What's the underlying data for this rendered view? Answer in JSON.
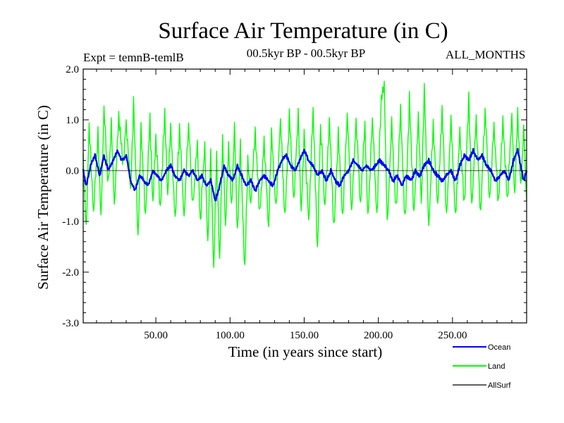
{
  "chart_data": {
    "type": "line",
    "title": "Surface Air Temperature (in C)",
    "subtitle_left": "Expt = temnB-temlB",
    "subtitle_center": "00.5kyr BP - 00.5kyr BP",
    "subtitle_right": "ALL_MONTHS",
    "xlabel": "Time (in years since start)",
    "ylabel": "Surface Air Temperature (in C)",
    "xlim": [
      1,
      300
    ],
    "ylim": [
      -3.0,
      2.0
    ],
    "x_ticks": [
      50,
      100,
      150,
      200,
      250
    ],
    "x_tick_labels": [
      "50.00",
      "100.00",
      "150.00",
      "200.00",
      "250.00"
    ],
    "y_ticks": [
      -3.0,
      -2.0,
      -1.0,
      0.0,
      1.0,
      2.0
    ],
    "y_tick_labels": [
      "-3.0",
      "-2.0",
      "-1.0",
      "0.0",
      "1.0",
      "2.0"
    ],
    "samples_per_year": 2,
    "series": [
      {
        "name": "Land",
        "color": "#00ff00",
        "keypoints": [
          [
            1,
            0.2
          ],
          [
            3,
            -1.2
          ],
          [
            5,
            0.9
          ],
          [
            8,
            -0.8
          ],
          [
            11,
            0.7
          ],
          [
            13,
            -0.9
          ],
          [
            15,
            1.2
          ],
          [
            18,
            -0.3
          ],
          [
            20,
            0.9
          ],
          [
            22,
            -0.7
          ],
          [
            25,
            1.1
          ],
          [
            28,
            0.1
          ],
          [
            30,
            1.0
          ],
          [
            33,
            -0.4
          ],
          [
            35,
            1.3
          ],
          [
            38,
            -1.3
          ],
          [
            40,
            0.8
          ],
          [
            43,
            -0.9
          ],
          [
            46,
            1.0
          ],
          [
            48,
            -0.6
          ],
          [
            50,
            0.7
          ],
          [
            53,
            -0.8
          ],
          [
            56,
            1.2
          ],
          [
            58,
            -0.5
          ],
          [
            60,
            0.9
          ],
          [
            63,
            -1.0
          ],
          [
            66,
            0.8
          ],
          [
            69,
            -0.9
          ],
          [
            72,
            0.9
          ],
          [
            75,
            -0.7
          ],
          [
            78,
            0.6
          ],
          [
            80,
            -1.0
          ],
          [
            83,
            0.5
          ],
          [
            85,
            -1.5
          ],
          [
            87,
            0.4
          ],
          [
            89,
            -1.95
          ],
          [
            91,
            0.3
          ],
          [
            93,
            -1.9
          ],
          [
            95,
            0.6
          ],
          [
            97,
            -1.1
          ],
          [
            99,
            0.5
          ],
          [
            101,
            -0.8
          ],
          [
            103,
            0.9
          ],
          [
            105,
            -1.3
          ],
          [
            107,
            0.5
          ],
          [
            110,
            -2.0
          ],
          [
            112,
            0.3
          ],
          [
            114,
            -0.7
          ],
          [
            117,
            0.8
          ],
          [
            120,
            -0.9
          ],
          [
            123,
            0.6
          ],
          [
            126,
            -1.2
          ],
          [
            128,
            0.7
          ],
          [
            131,
            -0.8
          ],
          [
            134,
            1.0
          ],
          [
            137,
            -0.9
          ],
          [
            140,
            1.1
          ],
          [
            143,
            -0.6
          ],
          [
            146,
            1.2
          ],
          [
            148,
            -0.9
          ],
          [
            150,
            0.8
          ],
          [
            153,
            -1.0
          ],
          [
            156,
            1.2
          ],
          [
            159,
            -1.6
          ],
          [
            161,
            0.9
          ],
          [
            164,
            -0.7
          ],
          [
            167,
            1.0
          ],
          [
            170,
            -1.2
          ],
          [
            173,
            0.7
          ],
          [
            176,
            -1.0
          ],
          [
            179,
            1.1
          ],
          [
            182,
            -0.8
          ],
          [
            185,
            1.0
          ],
          [
            188,
            -0.7
          ],
          [
            191,
            0.9
          ],
          [
            193,
            -1.0
          ],
          [
            196,
            1.0
          ],
          [
            199,
            -0.9
          ],
          [
            202,
            1.4
          ],
          [
            204,
            1.65
          ],
          [
            206,
            -1.1
          ],
          [
            209,
            0.9
          ],
          [
            212,
            -0.8
          ],
          [
            215,
            1.2
          ],
          [
            218,
            -1.0
          ],
          [
            221,
            1.4
          ],
          [
            224,
            -0.9
          ],
          [
            227,
            1.0
          ],
          [
            229,
            -0.7
          ],
          [
            231,
            1.6
          ],
          [
            234,
            -1.1
          ],
          [
            237,
            0.9
          ],
          [
            240,
            -0.7
          ],
          [
            243,
            1.2
          ],
          [
            246,
            -0.9
          ],
          [
            249,
            1.0
          ],
          [
            252,
            -1.0
          ],
          [
            255,
            0.8
          ],
          [
            258,
            -0.7
          ],
          [
            261,
            1.5
          ],
          [
            263,
            -0.8
          ],
          [
            266,
            1.0
          ],
          [
            269,
            -0.9
          ],
          [
            272,
            1.2
          ],
          [
            275,
            -0.6
          ],
          [
            278,
            0.9
          ],
          [
            281,
            -0.7
          ],
          [
            284,
            1.0
          ],
          [
            287,
            -0.6
          ],
          [
            290,
            1.1
          ],
          [
            292,
            -0.5
          ],
          [
            294,
            1.2
          ],
          [
            296,
            -0.4
          ],
          [
            298,
            0.9
          ],
          [
            300,
            -0.6
          ]
        ]
      },
      {
        "name": "Ocean",
        "color": "#0000ff",
        "keypoints": [
          [
            1,
            0.0
          ],
          [
            3,
            -0.3
          ],
          [
            6,
            0.1
          ],
          [
            9,
            0.3
          ],
          [
            12,
            -0.1
          ],
          [
            15,
            0.3
          ],
          [
            18,
            0.0
          ],
          [
            21,
            0.2
          ],
          [
            24,
            0.4
          ],
          [
            27,
            0.2
          ],
          [
            30,
            0.3
          ],
          [
            33,
            -0.2
          ],
          [
            36,
            -0.4
          ],
          [
            39,
            -0.1
          ],
          [
            42,
            -0.2
          ],
          [
            45,
            -0.3
          ],
          [
            48,
            0.0
          ],
          [
            51,
            -0.1
          ],
          [
            54,
            -0.2
          ],
          [
            57,
            0.0
          ],
          [
            60,
            0.1
          ],
          [
            63,
            -0.1
          ],
          [
            66,
            -0.2
          ],
          [
            69,
            0.0
          ],
          [
            72,
            -0.1
          ],
          [
            75,
            0.0
          ],
          [
            78,
            -0.2
          ],
          [
            81,
            -0.1
          ],
          [
            84,
            -0.3
          ],
          [
            87,
            -0.2
          ],
          [
            90,
            -0.6
          ],
          [
            93,
            -0.3
          ],
          [
            96,
            0.1
          ],
          [
            99,
            -0.1
          ],
          [
            102,
            -0.2
          ],
          [
            105,
            0.1
          ],
          [
            108,
            -0.1
          ],
          [
            111,
            -0.3
          ],
          [
            114,
            -0.2
          ],
          [
            117,
            -0.4
          ],
          [
            120,
            -0.2
          ],
          [
            123,
            -0.1
          ],
          [
            126,
            -0.2
          ],
          [
            129,
            -0.3
          ],
          [
            132,
            0.0
          ],
          [
            135,
            0.2
          ],
          [
            138,
            0.3
          ],
          [
            141,
            0.1
          ],
          [
            144,
            0.0
          ],
          [
            147,
            0.2
          ],
          [
            150,
            0.4
          ],
          [
            153,
            0.2
          ],
          [
            156,
            0.1
          ],
          [
            159,
            -0.1
          ],
          [
            162,
            0.0
          ],
          [
            165,
            -0.2
          ],
          [
            168,
            0.0
          ],
          [
            171,
            -0.2
          ],
          [
            174,
            -0.3
          ],
          [
            177,
            -0.1
          ],
          [
            180,
            0.0
          ],
          [
            183,
            0.2
          ],
          [
            186,
            0.1
          ],
          [
            189,
            0.0
          ],
          [
            192,
            0.1
          ],
          [
            195,
            0.0
          ],
          [
            198,
            0.1
          ],
          [
            201,
            0.2
          ],
          [
            204,
            0.1
          ],
          [
            207,
            0.0
          ],
          [
            210,
            -0.2
          ],
          [
            213,
            -0.1
          ],
          [
            216,
            -0.3
          ],
          [
            219,
            -0.1
          ],
          [
            222,
            -0.2
          ],
          [
            225,
            0.0
          ],
          [
            228,
            -0.1
          ],
          [
            231,
            0.1
          ],
          [
            234,
            0.2
          ],
          [
            237,
            0.0
          ],
          [
            240,
            -0.1
          ],
          [
            243,
            -0.2
          ],
          [
            246,
            -0.1
          ],
          [
            249,
            0.0
          ],
          [
            252,
            -0.2
          ],
          [
            255,
            0.1
          ],
          [
            258,
            0.3
          ],
          [
            261,
            0.2
          ],
          [
            264,
            0.4
          ],
          [
            267,
            0.2
          ],
          [
            270,
            0.3
          ],
          [
            273,
            0.1
          ],
          [
            276,
            0.0
          ],
          [
            279,
            -0.2
          ],
          [
            282,
            -0.1
          ],
          [
            285,
            0.0
          ],
          [
            288,
            -0.2
          ],
          [
            291,
            0.2
          ],
          [
            294,
            0.4
          ],
          [
            296,
            0.1
          ],
          [
            298,
            -0.2
          ],
          [
            300,
            0.0
          ]
        ]
      },
      {
        "name": "AllSurf",
        "color": "#000000",
        "keypoints": [
          [
            1,
            0.0
          ],
          [
            300,
            0.0
          ]
        ]
      }
    ],
    "legend": {
      "placement": "bottom-right",
      "entries": [
        "Ocean",
        "Land",
        "AllSurf"
      ]
    }
  }
}
